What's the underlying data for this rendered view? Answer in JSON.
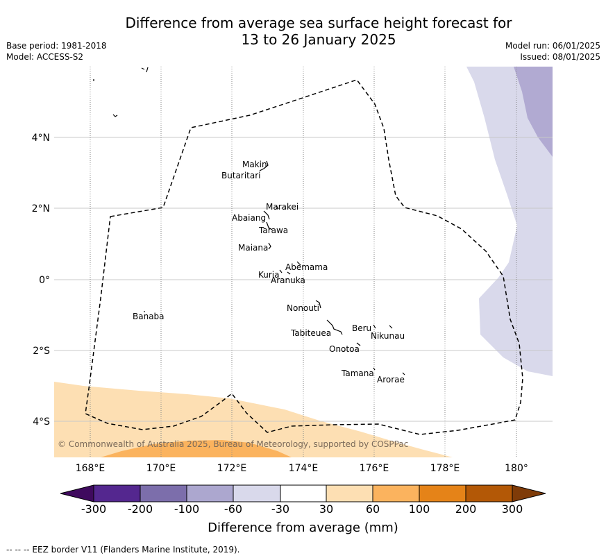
{
  "header": {
    "title_line1": "Difference from average sea surface height forecast for",
    "title_line2": "13 to 26 January 2025",
    "base_period": "Base period: 1981-2018",
    "model": "Model: ACCESS-S2",
    "model_run": "Model run: 06/01/2025",
    "issued": "Issued: 08/01/2025"
  },
  "map": {
    "lon_labels": [
      "168°E",
      "170°E",
      "172°E",
      "174°E",
      "176°E",
      "178°E",
      "180°"
    ],
    "lat_labels": [
      "4°N",
      "2°N",
      "0°",
      "2°S",
      "4°S"
    ],
    "places": [
      {
        "name": "Makin"
      },
      {
        "name": "Butaritari"
      },
      {
        "name": "Marakei"
      },
      {
        "name": "Abaiang"
      },
      {
        "name": "Tarawa"
      },
      {
        "name": "Maiana"
      },
      {
        "name": "Abemama"
      },
      {
        "name": "Kuria"
      },
      {
        "name": "Aranuka"
      },
      {
        "name": "Nonouti"
      },
      {
        "name": "Banaba"
      },
      {
        "name": "Beru"
      },
      {
        "name": "Nikunau"
      },
      {
        "name": "Tabiteuea"
      },
      {
        "name": "Onotoa"
      },
      {
        "name": "Tamana"
      },
      {
        "name": "Arorae"
      }
    ],
    "copyright": "© Commonwealth of Australia 2025, Bureau of Meteorology, supported by COSPPac"
  },
  "colorbar": {
    "ticks": [
      "-300",
      "-200",
      "-100",
      "-60",
      "-30",
      "30",
      "60",
      "100",
      "200",
      "300"
    ],
    "colors": [
      "#3f0a5e",
      "#54278f",
      "#7c6eab",
      "#aca7cf",
      "#d9d9eb",
      "#ffffff",
      "#fddfb3",
      "#fbb35e",
      "#e58318",
      "#b35806",
      "#7f3b08"
    ],
    "label": "Difference from average (mm)"
  },
  "footnote": "--  --  -- EEZ border V11 (Flanders Marine Institute, 2019)."
}
